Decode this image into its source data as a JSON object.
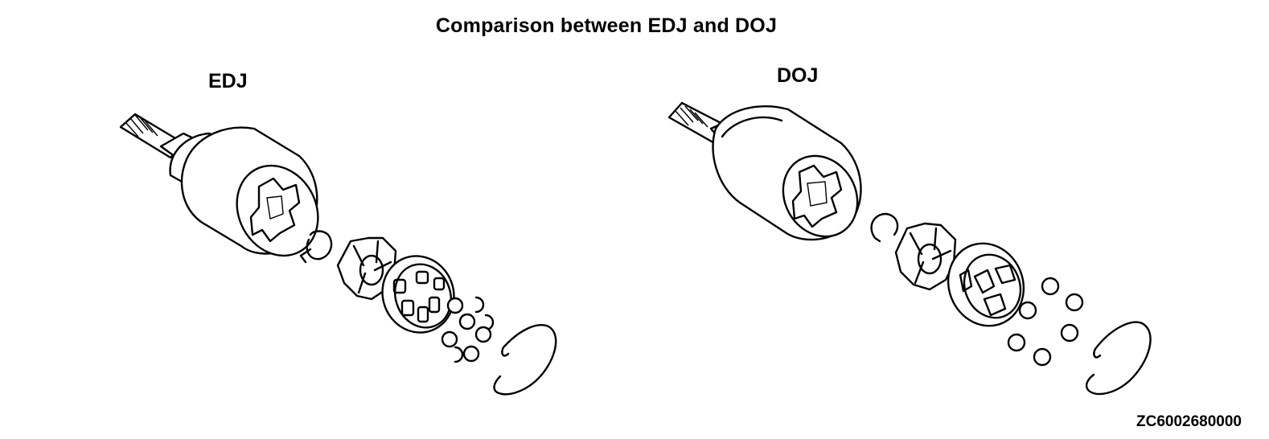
{
  "title": "Comparison between EDJ and DOJ",
  "joints": [
    {
      "label": "EDJ"
    },
    {
      "label": "DOJ"
    }
  ],
  "figure_id": "ZC6002680000"
}
